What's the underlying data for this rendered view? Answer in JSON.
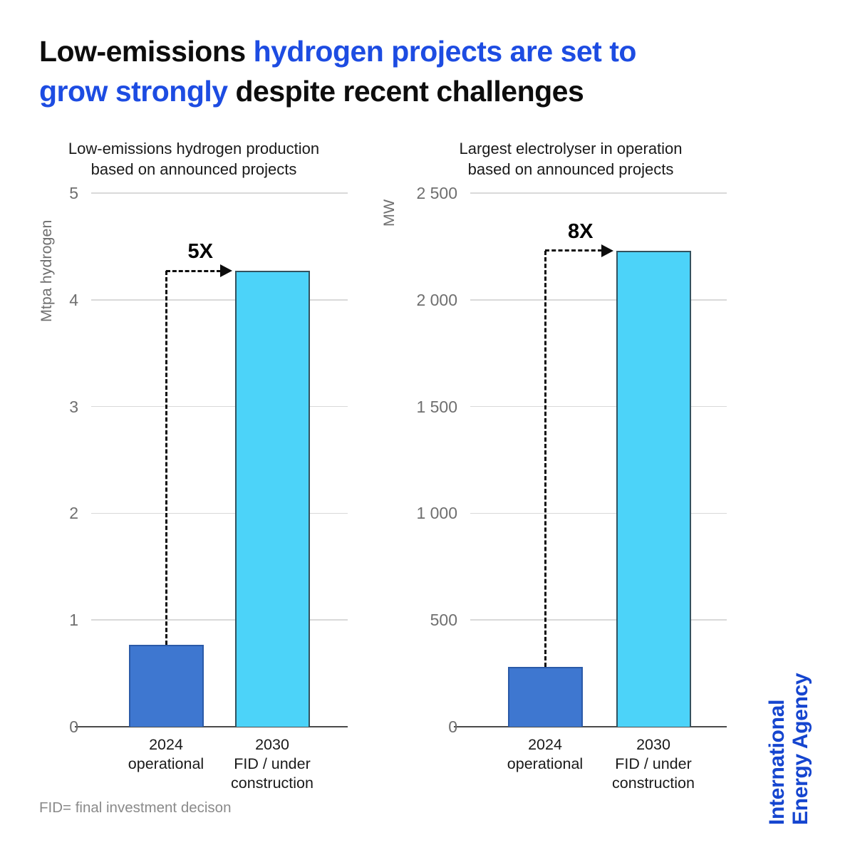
{
  "title": {
    "line1_black": "Low-emissions ",
    "line1_blue": "hydrogen projects are set to",
    "line2_blue": "grow strongly",
    "line2_black": " despite recent challenges"
  },
  "footnote": "FID= final investment decison",
  "logo": {
    "line1": "International",
    "line2": "Energy Agency"
  },
  "colors": {
    "title_accent": "#1d4ce2",
    "logo_blue": "#1545cf",
    "bar_2024": "#3e77d0",
    "bar_2024_border": "#2b5aa8",
    "bar_2030": "#4cd3f9",
    "bar_2030_border": "#33525f",
    "grid": "#d9d9d9",
    "axis": "#4a4a4a",
    "tick_text": "#6f6f6f"
  },
  "chart_data": [
    {
      "type": "bar",
      "title_lines": [
        "Low-emissions hydrogen production",
        "based on announced projects"
      ],
      "ylabel": "Mtpa hydrogen",
      "ylim": [
        0,
        5
      ],
      "yticks": [
        {
          "value": 0,
          "label": "0"
        },
        {
          "value": 1,
          "label": "1"
        },
        {
          "value": 2,
          "label": "2"
        },
        {
          "value": 3,
          "label": "3"
        },
        {
          "value": 4,
          "label": "4"
        },
        {
          "value": 5,
          "label": "5"
        }
      ],
      "categories": [
        [
          "2024",
          "operational"
        ],
        [
          "2030",
          "FID / under",
          "construction"
        ]
      ],
      "values": [
        0.77,
        4.27
      ],
      "annotation": "5X",
      "grid": true,
      "legend": "none"
    },
    {
      "type": "bar",
      "title_lines": [
        "Largest electrolyser in operation",
        "based on announced projects"
      ],
      "ylabel": "MW",
      "ylim": [
        0,
        2500
      ],
      "yticks": [
        {
          "value": 0,
          "label": "0"
        },
        {
          "value": 500,
          "label": "500"
        },
        {
          "value": 1000,
          "label": "1 000"
        },
        {
          "value": 1500,
          "label": "1 500"
        },
        {
          "value": 2000,
          "label": "2 000"
        },
        {
          "value": 2500,
          "label": "2 500"
        }
      ],
      "categories": [
        [
          "2024",
          "operational"
        ],
        [
          "2030",
          "FID / under",
          "construction"
        ]
      ],
      "values": [
        280,
        2230
      ],
      "annotation": "8X",
      "grid": true,
      "legend": "none"
    }
  ]
}
